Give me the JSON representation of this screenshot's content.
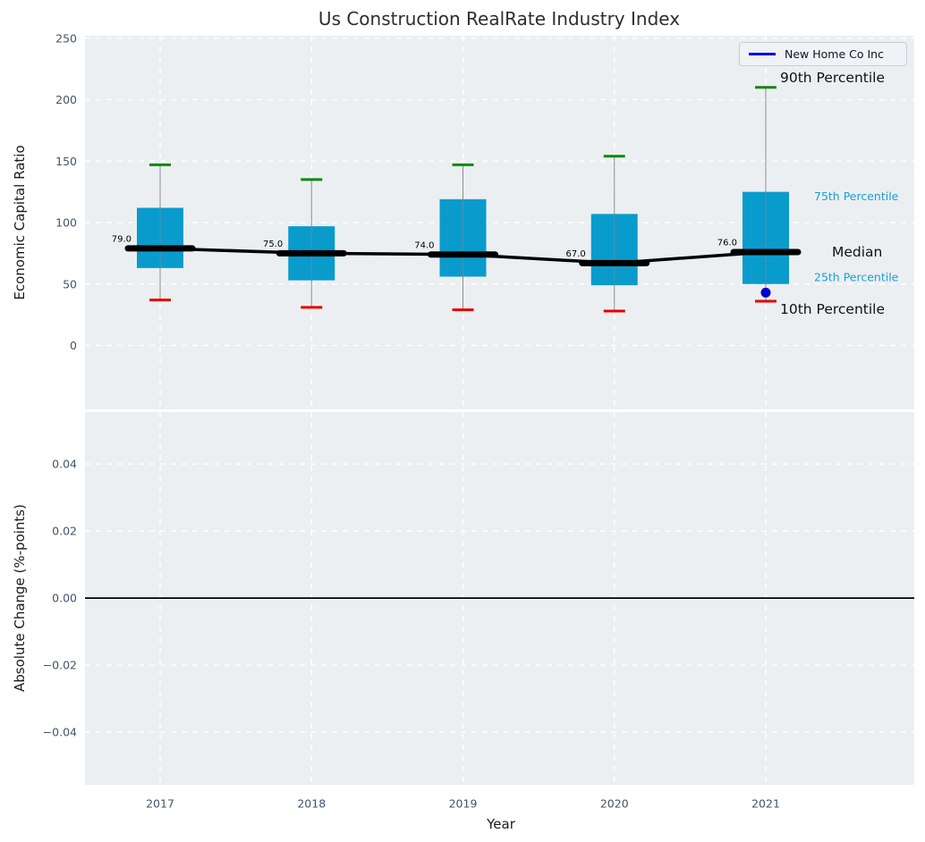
{
  "header": {
    "title": "Us Construction RealRate Industry Index"
  },
  "legend": {
    "items": [
      {
        "label": "New Home Co Inc",
        "color": "#0000dd",
        "marker": "line"
      }
    ]
  },
  "axes": {
    "top": {
      "ylabel": "Economic Capital Ratio"
    },
    "bottom": {
      "ylabel": "Absolute Change (%-points)",
      "xlabel": "Year"
    }
  },
  "colors": {
    "panel_background": "#eceff1",
    "grid": "#ffffff",
    "box_fill": "#0a9bcd",
    "p90_cap": "#128712",
    "p10_cap": "#e50000",
    "median": "#000000",
    "company_point": "#0000cd",
    "tick_label": "#44546a",
    "annotation_dark": "#111111",
    "annotation_cyan": "#1a9fd4",
    "whisker": "#8c8c8c",
    "zero_line": "#000000"
  },
  "chart_data": [
    {
      "type": "boxplot",
      "title": "Us Construction RealRate Industry Index",
      "xlabel": "Year",
      "ylabel": "Economic Capital Ratio",
      "categories": [
        "2017",
        "2018",
        "2019",
        "2020",
        "2021"
      ],
      "ylim": [
        -52,
        252
      ],
      "yticks": [
        {
          "v": 0,
          "label": "0"
        },
        {
          "v": 50,
          "label": "50"
        },
        {
          "v": 100,
          "label": "100"
        },
        {
          "v": 150,
          "label": "150"
        },
        {
          "v": 200,
          "label": "200"
        },
        {
          "v": 250,
          "label": "250"
        }
      ],
      "grid": true,
      "legend_position": "upper right",
      "series": [
        {
          "name": "90th Percentile",
          "key": "p90",
          "values": [
            147,
            135,
            147,
            154,
            210
          ]
        },
        {
          "name": "75th Percentile",
          "key": "p75",
          "values": [
            112,
            97,
            119,
            107,
            125
          ]
        },
        {
          "name": "Median",
          "key": "median",
          "values": [
            79,
            75,
            74,
            67,
            76
          ]
        },
        {
          "name": "25th Percentile",
          "key": "p25",
          "values": [
            63,
            53,
            56,
            49,
            50
          ]
        },
        {
          "name": "10th Percentile",
          "key": "p10",
          "values": [
            37,
            31,
            29,
            28,
            36
          ]
        }
      ],
      "median_labels": [
        "79.0",
        "75.0",
        "74.0",
        "67.0",
        "76.0"
      ],
      "company_point": {
        "name": "New Home Co Inc",
        "category": "2021",
        "value": 43
      },
      "right_annotations": [
        {
          "text": "90th Percentile",
          "ref": "p90",
          "style": "dark",
          "size": 15.5
        },
        {
          "text": "75th Percentile",
          "ref": "p75",
          "style": "cyan",
          "size": 12.5
        },
        {
          "text": "Median",
          "ref": "median",
          "style": "dark",
          "size": 15.5
        },
        {
          "text": "25th Percentile",
          "ref": "p25",
          "style": "cyan",
          "size": 12.5
        },
        {
          "text": "10th Percentile",
          "ref": "p10",
          "style": "dark",
          "size": 15.5
        }
      ]
    },
    {
      "type": "line",
      "ylabel": "Absolute Change (%-points)",
      "xlabel": "Year",
      "x": [
        "2017",
        "2018",
        "2019",
        "2020",
        "2021"
      ],
      "ylim": [
        -0.0557,
        0.0555
      ],
      "yticks": [
        {
          "v": 0.04,
          "label": "0.04"
        },
        {
          "v": 0.02,
          "label": "0.02"
        },
        {
          "v": 0.0,
          "label": "0.00"
        },
        {
          "v": -0.02,
          "label": "−0.02"
        },
        {
          "v": -0.04,
          "label": "−0.04"
        }
      ],
      "grid": true,
      "zero_line": true,
      "series": []
    }
  ]
}
